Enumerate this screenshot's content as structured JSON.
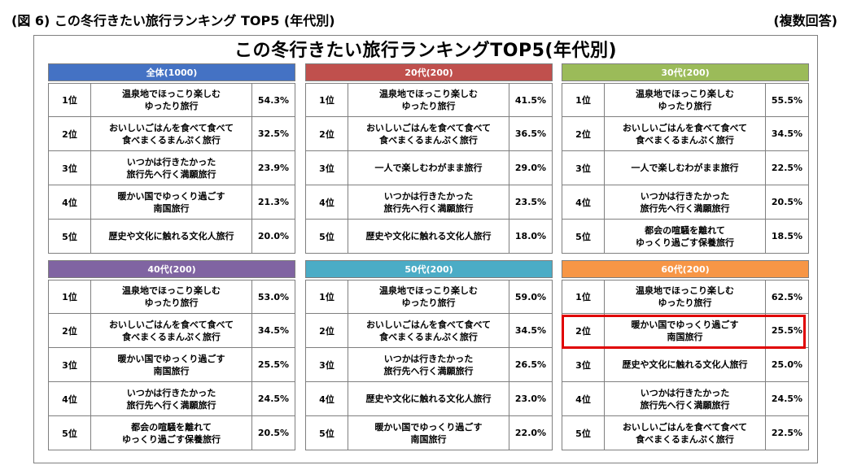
{
  "caption": "(図 6) この冬行きたい旅行ランキング TOP5 (年代別)",
  "note": "(複数回答)",
  "title": "この冬行きたい旅行ランキングTOP5(年代別)",
  "panels": [
    {
      "header": "全体(1000)",
      "color": "#4472c4",
      "rows": [
        {
          "rank": "1位",
          "item": "温泉地でほっこり楽しむ\nゆったり旅行",
          "pct": "54.3%"
        },
        {
          "rank": "2位",
          "item": "おいしいごはんを食べて食べて\n食べまくるまんぷく旅行",
          "pct": "32.5%"
        },
        {
          "rank": "3位",
          "item": "いつかは行きたかった\n旅行先へ行く満願旅行",
          "pct": "23.9%"
        },
        {
          "rank": "4位",
          "item": "暖かい国でゆっくり過ごす\n南国旅行",
          "pct": "21.3%"
        },
        {
          "rank": "5位",
          "item": "歴史や文化に触れる文化人旅行",
          "pct": "20.0%"
        }
      ]
    },
    {
      "header": "20代(200)",
      "color": "#c0504d",
      "rows": [
        {
          "rank": "1位",
          "item": "温泉地でほっこり楽しむ\nゆったり旅行",
          "pct": "41.5%"
        },
        {
          "rank": "2位",
          "item": "おいしいごはんを食べて食べて\n食べまくるまんぷく旅行",
          "pct": "36.5%"
        },
        {
          "rank": "3位",
          "item": "一人で楽しむわがまま旅行",
          "pct": "29.0%"
        },
        {
          "rank": "4位",
          "item": "いつかは行きたかった\n旅行先へ行く満願旅行",
          "pct": "23.5%"
        },
        {
          "rank": "5位",
          "item": "歴史や文化に触れる文化人旅行",
          "pct": "18.0%"
        }
      ]
    },
    {
      "header": "30代(200)",
      "color": "#9bbb59",
      "rows": [
        {
          "rank": "1位",
          "item": "温泉地でほっこり楽しむ\nゆったり旅行",
          "pct": "55.5%"
        },
        {
          "rank": "2位",
          "item": "おいしいごはんを食べて食べて\n食べまくるまんぷく旅行",
          "pct": "34.5%"
        },
        {
          "rank": "3位",
          "item": "一人で楽しむわがまま旅行",
          "pct": "22.5%"
        },
        {
          "rank": "4位",
          "item": "いつかは行きたかった\n旅行先へ行く満願旅行",
          "pct": "20.5%"
        },
        {
          "rank": "5位",
          "item": "都会の喧騒を離れて\nゆっくり過ごす保養旅行",
          "pct": "18.5%"
        }
      ]
    },
    {
      "header": "40代(200)",
      "color": "#8064a2",
      "rows": [
        {
          "rank": "1位",
          "item": "温泉地でほっこり楽しむ\nゆったり旅行",
          "pct": "53.0%"
        },
        {
          "rank": "2位",
          "item": "おいしいごはんを食べて食べて\n食べまくるまんぷく旅行",
          "pct": "34.5%"
        },
        {
          "rank": "3位",
          "item": "暖かい国でゆっくり過ごす\n南国旅行",
          "pct": "25.5%"
        },
        {
          "rank": "4位",
          "item": "いつかは行きたかった\n旅行先へ行く満願旅行",
          "pct": "24.5%"
        },
        {
          "rank": "5位",
          "item": "都会の喧騒を離れて\nゆっくり過ごす保養旅行",
          "pct": "20.5%"
        }
      ]
    },
    {
      "header": "50代(200)",
      "color": "#4bacc6",
      "rows": [
        {
          "rank": "1位",
          "item": "温泉地でほっこり楽しむ\nゆったり旅行",
          "pct": "59.0%"
        },
        {
          "rank": "2位",
          "item": "おいしいごはんを食べて食べて\n食べまくるまんぷく旅行",
          "pct": "34.5%"
        },
        {
          "rank": "3位",
          "item": "いつかは行きたかった\n旅行先へ行く満願旅行",
          "pct": "26.5%"
        },
        {
          "rank": "4位",
          "item": "歴史や文化に触れる文化人旅行",
          "pct": "23.0%"
        },
        {
          "rank": "5位",
          "item": "暖かい国でゆっくり過ごす\n南国旅行",
          "pct": "22.0%"
        }
      ]
    },
    {
      "header": "60代(200)",
      "color": "#f79646",
      "rows": [
        {
          "rank": "1位",
          "item": "温泉地でほっこり楽しむ\nゆったり旅行",
          "pct": "62.5%"
        },
        {
          "rank": "2位",
          "item": "暖かい国でゆっくり過ごす\n南国旅行",
          "pct": "25.5%"
        },
        {
          "rank": "3位",
          "item": "歴史や文化に触れる文化人旅行",
          "pct": "25.0%"
        },
        {
          "rank": "4位",
          "item": "いつかは行きたかった\n旅行先へ行く満願旅行",
          "pct": "24.5%"
        },
        {
          "rank": "5位",
          "item": "おいしいごはんを食べて食べて\n食べまくるまんぷく旅行",
          "pct": "22.5%"
        }
      ]
    }
  ],
  "highlight_color": "#e00000"
}
